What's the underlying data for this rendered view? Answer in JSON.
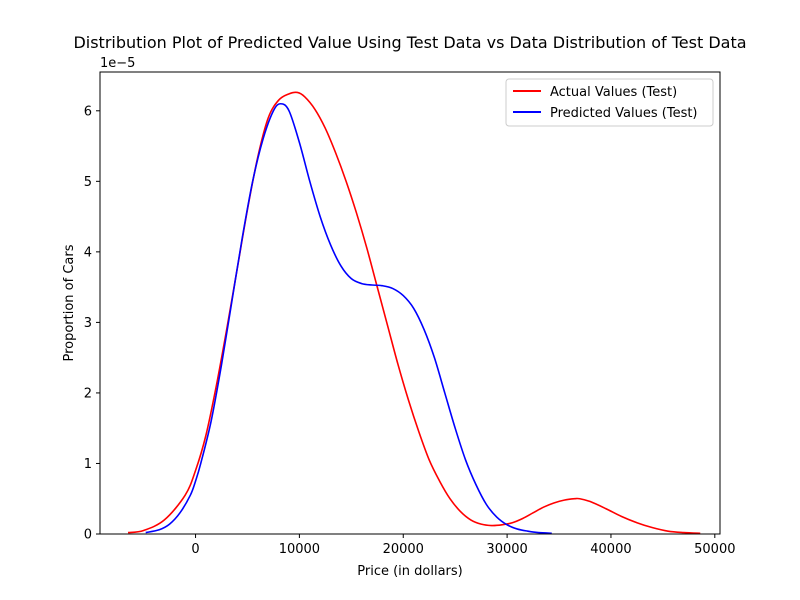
{
  "chart_data": {
    "type": "line",
    "title": "Distribution  Plot of  Predicted Value Using Test Data vs Data Distribution of Test Data",
    "xlabel": "Price (in dollars)",
    "ylabel": "Proportion of Cars",
    "y_offset_label": "1e−5",
    "xlim": [
      -9200,
      50500
    ],
    "ylim": [
      0,
      6.55
    ],
    "x_ticks": [
      0,
      10000,
      20000,
      30000,
      40000,
      50000
    ],
    "x_tick_labels": [
      "0",
      "10000",
      "20000",
      "30000",
      "40000",
      "50000"
    ],
    "y_ticks": [
      0,
      1,
      2,
      3,
      4,
      5,
      6
    ],
    "y_tick_labels": [
      "0",
      "1",
      "2",
      "3",
      "4",
      "5",
      "6"
    ],
    "grid": false,
    "legend_position": "top-right",
    "series": [
      {
        "name": "Actual Values (Test)",
        "color": "#ff0000",
        "x": [
          -6500,
          -5000,
          -3000,
          -1000,
          0,
          1000,
          2000,
          3000,
          4000,
          5000,
          6000,
          7000,
          8000,
          9000,
          9800,
          10500,
          11500,
          12500,
          13500,
          14500,
          15500,
          16500,
          17500,
          18500,
          19500,
          20500,
          21500,
          22500,
          23500,
          24500,
          25500,
          26500,
          27500,
          28500,
          29500,
          30500,
          31500,
          32500,
          33500,
          34500,
          35500,
          36500,
          37000,
          38000,
          39500,
          41000,
          42500,
          44000,
          45500,
          47000,
          48600
        ],
        "y": [
          0.02,
          0.05,
          0.2,
          0.55,
          0.9,
          1.4,
          2.1,
          2.9,
          3.75,
          4.6,
          5.35,
          5.9,
          6.15,
          6.24,
          6.26,
          6.2,
          6.02,
          5.75,
          5.4,
          5.0,
          4.55,
          4.05,
          3.5,
          2.95,
          2.4,
          1.9,
          1.45,
          1.05,
          0.75,
          0.5,
          0.32,
          0.2,
          0.14,
          0.12,
          0.13,
          0.16,
          0.22,
          0.3,
          0.38,
          0.44,
          0.48,
          0.5,
          0.5,
          0.46,
          0.36,
          0.25,
          0.16,
          0.09,
          0.04,
          0.02,
          0.01
        ]
      },
      {
        "name": "Predicted Values (Test)",
        "color": "#0000ff",
        "x": [
          -4800,
          -3500,
          -2500,
          -1500,
          -500,
          0,
          500,
          1500,
          2500,
          3500,
          4500,
          5500,
          6500,
          7500,
          8200,
          9000,
          10000,
          11000,
          12000,
          13000,
          14000,
          15000,
          16000,
          17000,
          18000,
          19000,
          20000,
          21000,
          22000,
          23000,
          24000,
          25000,
          26000,
          27000,
          28000,
          29000,
          30000,
          31000,
          32000,
          33000,
          34300
        ],
        "y": [
          0.02,
          0.06,
          0.14,
          0.3,
          0.55,
          0.75,
          1.0,
          1.6,
          2.4,
          3.3,
          4.2,
          5.0,
          5.6,
          6.0,
          6.1,
          6.0,
          5.55,
          5.0,
          4.5,
          4.1,
          3.8,
          3.62,
          3.55,
          3.53,
          3.52,
          3.48,
          3.38,
          3.2,
          2.9,
          2.5,
          2.0,
          1.5,
          1.05,
          0.7,
          0.42,
          0.24,
          0.13,
          0.07,
          0.04,
          0.02,
          0.01
        ]
      }
    ]
  }
}
